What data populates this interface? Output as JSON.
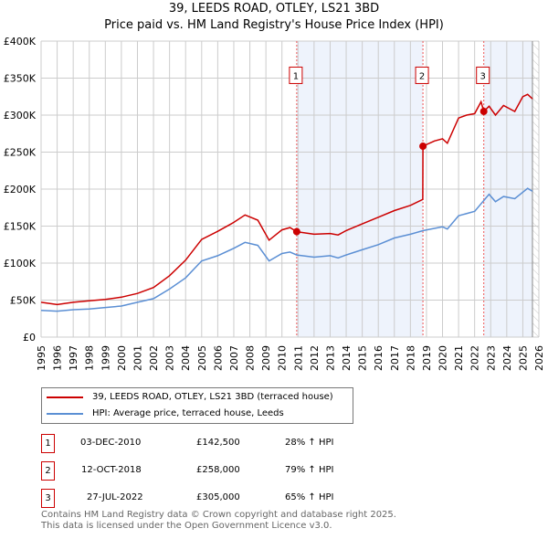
{
  "chart_data": {
    "type": "line",
    "title": "39, LEEDS ROAD, OTLEY, LS21 3BD",
    "subtitle": "Price paid vs. HM Land Registry's House Price Index (HPI)",
    "xlim": [
      1995,
      2026
    ],
    "ylim": [
      0,
      400000
    ],
    "x_ticks": [
      "1995",
      "1996",
      "1997",
      "1998",
      "1999",
      "2000",
      "2001",
      "2002",
      "2003",
      "2004",
      "2005",
      "2006",
      "2007",
      "2008",
      "2009",
      "2010",
      "2011",
      "2012",
      "2013",
      "2014",
      "2015",
      "2016",
      "2017",
      "2018",
      "2019",
      "2020",
      "2021",
      "2022",
      "2023",
      "2024",
      "2025",
      "2026"
    ],
    "y_ticks": [
      {
        "v": 0,
        "label": "£0"
      },
      {
        "v": 50000,
        "label": "£50K"
      },
      {
        "v": 100000,
        "label": "£100K"
      },
      {
        "v": 150000,
        "label": "£150K"
      },
      {
        "v": 200000,
        "label": "£200K"
      },
      {
        "v": 250000,
        "label": "£250K"
      },
      {
        "v": 300000,
        "label": "£300K"
      },
      {
        "v": 350000,
        "label": "£350K"
      },
      {
        "v": 400000,
        "label": "£400K"
      }
    ],
    "grid": true,
    "series": [
      {
        "name": "39, LEEDS ROAD, OTLEY, LS21 3BD (terraced house)",
        "color": "#cc0000",
        "x": [
          1995,
          1996,
          1997,
          1998,
          1999,
          2000,
          2001,
          2002,
          2003,
          2004,
          2005,
          2006,
          2007,
          2007.7,
          2008.5,
          2009.2,
          2010,
          2010.5,
          2010.92,
          2012,
          2013,
          2013.5,
          2014,
          2015,
          2016,
          2017,
          2018,
          2018.77,
          2018.78,
          2019.5,
          2020,
          2020.3,
          2021,
          2021.5,
          2022,
          2022.4,
          2022.57,
          2022.9,
          2023.3,
          2023.8,
          2024.5,
          2025,
          2025.3,
          2025.6
        ],
        "y": [
          47000,
          44000,
          47000,
          49000,
          51000,
          54000,
          59000,
          67000,
          83000,
          104000,
          132000,
          143000,
          155000,
          165000,
          158000,
          131000,
          145000,
          148000,
          142500,
          139000,
          140000,
          138000,
          144000,
          153000,
          162000,
          171000,
          178000,
          186000,
          258000,
          265000,
          268000,
          262000,
          296000,
          300000,
          302000,
          318000,
          305000,
          312000,
          300000,
          313000,
          305000,
          325000,
          328000,
          322000
        ]
      },
      {
        "name": "HPI: Average price, terraced house, Leeds",
        "color": "#5b8fd4",
        "x": [
          1995,
          1996,
          1997,
          1998,
          1999,
          2000,
          2001,
          2002,
          2003,
          2004,
          2005,
          2006,
          2007,
          2007.7,
          2008.5,
          2009.2,
          2010,
          2010.5,
          2010.92,
          2012,
          2013,
          2013.5,
          2014,
          2015,
          2016,
          2017,
          2018,
          2018.8,
          2020,
          2020.3,
          2021,
          2022,
          2022.9,
          2023.3,
          2023.8,
          2024.5,
          2025.3,
          2025.6
        ],
        "y": [
          36000,
          35000,
          37000,
          38000,
          40000,
          42000,
          47000,
          52000,
          65000,
          80000,
          103000,
          110000,
          120000,
          128000,
          124000,
          103000,
          113000,
          115000,
          111000,
          108000,
          110000,
          107000,
          111000,
          118000,
          125000,
          134000,
          139000,
          144000,
          149000,
          146000,
          164000,
          170000,
          193000,
          183000,
          190000,
          187000,
          201000,
          197000
        ]
      }
    ],
    "sales": [
      {
        "n": "1",
        "x": 2010.92,
        "price": 142500,
        "date": "03-DEC-2010",
        "price_label": "£142,500",
        "hpi": "28% ↑ HPI"
      },
      {
        "n": "2",
        "x": 2018.78,
        "price": 258000,
        "date": "12-OCT-2018",
        "price_label": "£258,000",
        "hpi": "79% ↑ HPI"
      },
      {
        "n": "3",
        "x": 2022.57,
        "price": 305000,
        "date": "27-JUL-2022",
        "price_label": "£305,000",
        "hpi": "65% ↑ HPI"
      }
    ],
    "shaded_ranges": [
      [
        2010.92,
        2018.78
      ],
      [
        2022.57,
        2025.6
      ]
    ],
    "forecast_start": 2025.6
  },
  "legend": {
    "red": "39, LEEDS ROAD, OTLEY, LS21 3BD (terraced house)",
    "blue": "HPI: Average price, terraced house, Leeds"
  },
  "footer": {
    "line1": "Contains HM Land Registry data © Crown copyright and database right 2025.",
    "line2": "This data is licensed under the Open Government Licence v3.0."
  }
}
